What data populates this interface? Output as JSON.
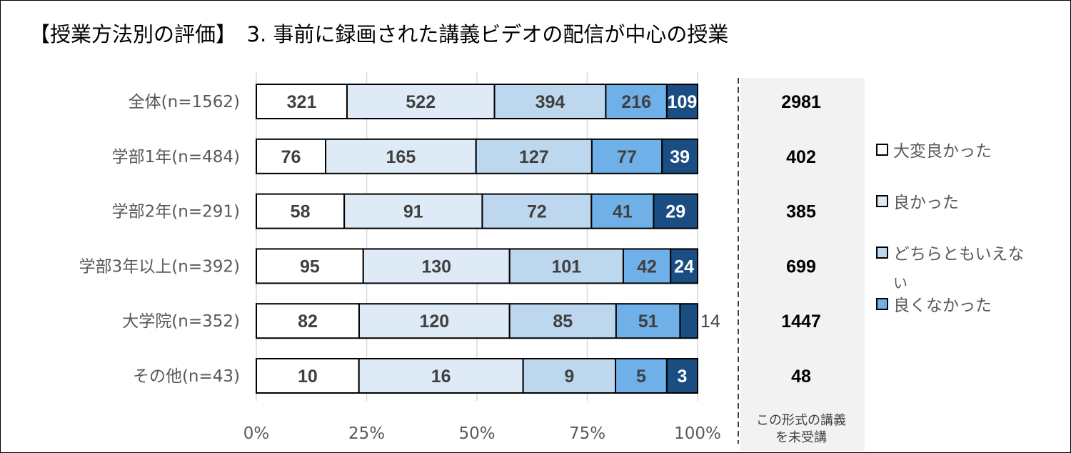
{
  "title": "【授業方法別の評価】　3. 事前に録画された講義ビデオの配信が中心の授業",
  "chart_data": {
    "type": "bar",
    "orientation": "horizontal",
    "stacked": "percent",
    "categories": [
      "全体(n=1562)",
      "学部1年(n=484)",
      "学部2年(n=291)",
      "学部3年以上(n=392)",
      "大学院(n=352)",
      "その他(n=43)"
    ],
    "series": [
      {
        "name": "大変良かった",
        "color": "#FFFFFF",
        "values": [
          321,
          76,
          58,
          95,
          82,
          10
        ]
      },
      {
        "name": "良かった",
        "color": "#DEEBF7",
        "values": [
          522,
          165,
          91,
          130,
          120,
          16
        ]
      },
      {
        "name": "どちらともいえない",
        "color": "#BDD7EE",
        "values": [
          394,
          127,
          72,
          101,
          85,
          9
        ]
      },
      {
        "name": "良くなかった",
        "color": "#6FB0E8",
        "values": [
          216,
          77,
          41,
          42,
          51,
          5
        ]
      },
      {
        "color": "#1A4E82",
        "values": [
          109,
          39,
          29,
          24,
          14,
          3
        ]
      }
    ],
    "x_ticks": [
      "0%",
      "25%",
      "50%",
      "75%",
      "100%"
    ],
    "xlim": [
      0,
      100
    ],
    "grid": true,
    "legend_placement": "right",
    "not_attended": {
      "header": [
        "この形式の講義",
        "を未受講"
      ],
      "values": [
        2981,
        402,
        385,
        699,
        1447,
        48
      ]
    }
  }
}
